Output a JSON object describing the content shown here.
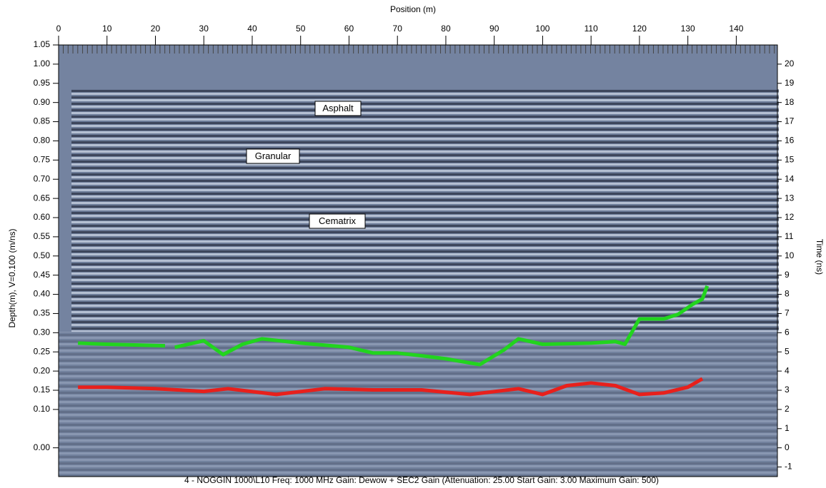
{
  "chart_data": {
    "type": "line",
    "title": "Position (m)",
    "y_label": "Depth(m), V=0.100 (m/ns)",
    "y2_label": "Time (ns)",
    "footer": "4 - NOGGIN 1000\\L10  Freq: 1000 MHz Gain: Dewow + SEC2 Gain (Attenuation: 25.00 Start Gain: 3.00 Maximum Gain: 500)",
    "annotations": [
      "Asphalt",
      "Granular",
      "Cematrix"
    ],
    "xlim": [
      0,
      148.5
    ],
    "xticks": [
      0,
      10,
      20,
      30,
      40,
      50,
      60,
      70,
      80,
      90,
      100,
      110,
      120,
      130,
      140
    ],
    "ylim": [
      -0.075,
      1.05
    ],
    "yticks": [
      {
        "value": 0,
        "label": "0.00"
      },
      {
        "value": 0.1,
        "label": "0.10"
      },
      0.15,
      {
        "value": 0.2,
        "label": "0.20"
      },
      0.25,
      {
        "value": 0.3,
        "label": "0.30"
      },
      0.35,
      {
        "value": 0.4,
        "label": "0.40"
      },
      0.45,
      {
        "value": 0.5,
        "label": "0.50"
      },
      0.55,
      {
        "value": 0.6,
        "label": "0.60"
      },
      0.65,
      {
        "value": 0.7,
        "label": "0.70"
      },
      0.75,
      {
        "value": 0.8,
        "label": "0.80"
      },
      0.85,
      {
        "value": 0.9,
        "label": "0.90"
      },
      0.95,
      {
        "value": 1,
        "label": "1.00"
      },
      1.05
    ],
    "y2lim": [
      -1.5,
      21
    ],
    "y2ticks": [
      -1,
      0,
      1,
      2,
      3,
      4,
      5,
      6,
      7,
      8,
      9,
      10,
      11,
      12,
      13,
      14,
      15,
      16,
      17,
      18,
      19,
      20
    ],
    "series": [
      {
        "color": "#e8201c",
        "x": [
          4,
          10,
          20,
          30,
          35,
          45,
          55,
          65,
          75,
          85,
          95,
          100,
          105,
          110,
          115,
          120,
          125,
          130,
          133
        ],
        "values": [
          0.158,
          0.158,
          0.154,
          0.147,
          0.154,
          0.139,
          0.154,
          0.151,
          0.151,
          0.139,
          0.154,
          0.139,
          0.162,
          0.169,
          0.162,
          0.139,
          0.143,
          0.158,
          0.18
        ]
      },
      {
        "color": "#22d41e",
        "x": [
          4,
          10,
          22,
          23,
          24,
          30,
          34,
          38,
          42,
          50,
          60,
          65,
          70,
          75,
          80,
          87,
          92,
          95,
          100,
          110,
          115,
          117,
          120,
          125,
          128,
          131,
          133,
          134
        ],
        "values": [
          0.273,
          0.27,
          0.266,
          null,
          0.262,
          0.279,
          0.243,
          0.27,
          0.284,
          0.273,
          0.262,
          0.247,
          0.247,
          0.24,
          0.232,
          0.217,
          0.255,
          0.284,
          0.27,
          0.273,
          0.277,
          0.27,
          0.336,
          0.336,
          0.348,
          0.374,
          0.388,
          0.422
        ]
      }
    ]
  }
}
